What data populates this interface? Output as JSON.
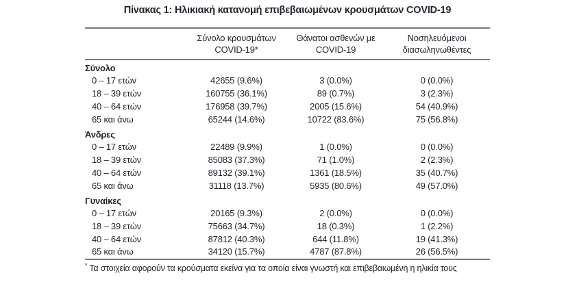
{
  "title": "Πίνακας 1: Ηλικιακή κατανομή επιβεβαιωμένων κρουσμάτων COVID-19",
  "colors": {
    "text": "#23262e",
    "border": "#7b7b7b",
    "background": "#ffffff"
  },
  "table": {
    "headers": {
      "cases": {
        "line1": "Σύνολο κρουσμάτων",
        "line2": "COVID-19*"
      },
      "deaths": {
        "line1": "Θάνατοι ασθενών με",
        "line2": "COVID-19"
      },
      "intubated": {
        "line1": "Νοσηλευόμενοι",
        "line2": "διασωληνωθέντες"
      }
    },
    "sections": [
      {
        "label": "Σύνολο",
        "rows": [
          {
            "age": "0 – 17 ετών",
            "cases": "42655 (9.6%)",
            "deaths": "3 (0.0%)",
            "intubated": "0 (0.0%)"
          },
          {
            "age": "18 – 39 ετών",
            "cases": "160755 (36.1%)",
            "deaths": "89 (0.7%)",
            "intubated": "3 (2.3%)"
          },
          {
            "age": "40 – 64 ετών",
            "cases": "176958 (39.7%)",
            "deaths": "2005 (15.6%)",
            "intubated": "54 (40.9%)"
          },
          {
            "age": "65 και άνω",
            "cases": "65244 (14.6%)",
            "deaths": "10722 (83.6%)",
            "intubated": "75 (56.8%)"
          }
        ]
      },
      {
        "label": "Άνδρες",
        "rows": [
          {
            "age": "0 – 17 ετών",
            "cases": "22489 (9.9%)",
            "deaths": "1 (0.0%)",
            "intubated": "0 (0.0%)"
          },
          {
            "age": "18 – 39 ετών",
            "cases": "85083 (37.3%)",
            "deaths": "71 (1.0%)",
            "intubated": "2 (2.3%)"
          },
          {
            "age": "40 – 64 ετών",
            "cases": "89132 (39.1%)",
            "deaths": "1361 (18.5%)",
            "intubated": "35 (40.7%)"
          },
          {
            "age": "65 και άνω",
            "cases": "31118 (13.7%)",
            "deaths": "5935 (80.6%)",
            "intubated": "49 (57.0%)"
          }
        ]
      },
      {
        "label": "Γυναίκες",
        "rows": [
          {
            "age": "0 – 17 ετών",
            "cases": "20165 (9.3%)",
            "deaths": "2 (0.0%)",
            "intubated": "0 (0.0%)"
          },
          {
            "age": "18 – 39 ετών",
            "cases": "75663 (34.7%)",
            "deaths": "18 (0.3%)",
            "intubated": "1 (2.2%)"
          },
          {
            "age": "40 – 64 ετών",
            "cases": "87812 (40.3%)",
            "deaths": "644 (11.8%)",
            "intubated": "19 (41.3%)"
          },
          {
            "age": "65 και άνω",
            "cases": "34120 (15.7%)",
            "deaths": "4787 (87.8%)",
            "intubated": "26 (56.5%)"
          }
        ]
      }
    ]
  },
  "footnote": {
    "marker": "*",
    "text": "Τα στοιχεία αφορούν τα κρούσματα εκείνα για τα οποία είναι γνωστή και επιβεβαιωμένη η ηλικία τους"
  }
}
